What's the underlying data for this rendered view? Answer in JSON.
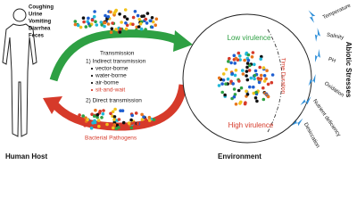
{
  "human_host": {
    "symptoms": [
      "Coughing",
      "Urine",
      "Vomiting",
      "Diarrhea",
      "Feces"
    ],
    "label": "Human Host"
  },
  "transmission": {
    "title": "Transmission",
    "indirect": "1) Indirect transmission",
    "routes": [
      "vector-borne",
      "water-borne",
      "air-borne",
      "sit-and-wait"
    ],
    "direct": "2) Direct transmission"
  },
  "pathogens_label": "Bacterial Pathogens",
  "environment": {
    "label": "Environment",
    "low": "Low virulence",
    "high": "High virulence",
    "time": "Time Duration"
  },
  "abiotic": {
    "title": "Abiotic Stresses",
    "stresses": [
      "Temperature",
      "Salinity",
      "PH",
      "Oxidation",
      "Nutrient deficiency",
      "Desiccation"
    ]
  }
}
